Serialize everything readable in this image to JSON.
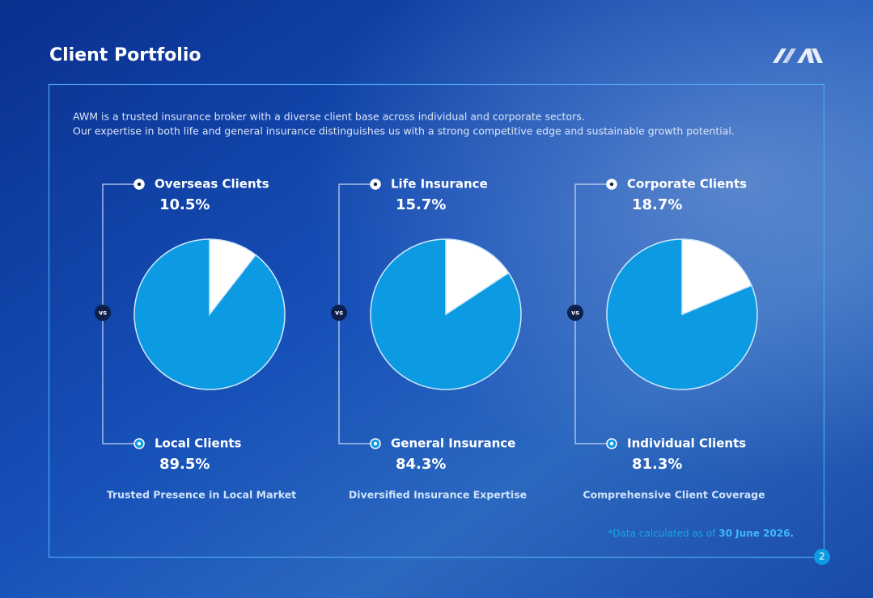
{
  "title": "Client Portfolio",
  "description": [
    "AWM is a trusted insurance broker with a diverse client base across individual and corporate sectors.",
    "Our expertise in both life and general insurance distinguishes us with a strong competitive edge and sustainable growth potential."
  ],
  "vs_label": "vs",
  "chart_data": [
    {
      "type": "pie",
      "categories": [
        "Overseas Clients",
        "Local Clients"
      ],
      "values": [
        10.5,
        89.5
      ],
      "value_labels": [
        "10.5%",
        "89.5%"
      ],
      "colors": [
        "#ffffff",
        "#0c9be3"
      ],
      "caption": "Trusted Presence in Local Market"
    },
    {
      "type": "pie",
      "categories": [
        "Life Insurance",
        "General Insurance"
      ],
      "values": [
        15.7,
        84.3
      ],
      "value_labels": [
        "15.7%",
        "84.3%"
      ],
      "colors": [
        "#ffffff",
        "#0c9be3"
      ],
      "caption": "Diversified Insurance Expertise"
    },
    {
      "type": "pie",
      "categories": [
        "Corporate Clients",
        "Individual Clients"
      ],
      "values": [
        18.7,
        81.3
      ],
      "value_labels": [
        "18.7%",
        "81.3%"
      ],
      "colors": [
        "#ffffff",
        "#0c9be3"
      ],
      "caption": "Comprehensive Client Coverage"
    }
  ],
  "footnote": {
    "text": "*Data calculated as of",
    "date": "30 June 2026."
  },
  "page_number": "2"
}
